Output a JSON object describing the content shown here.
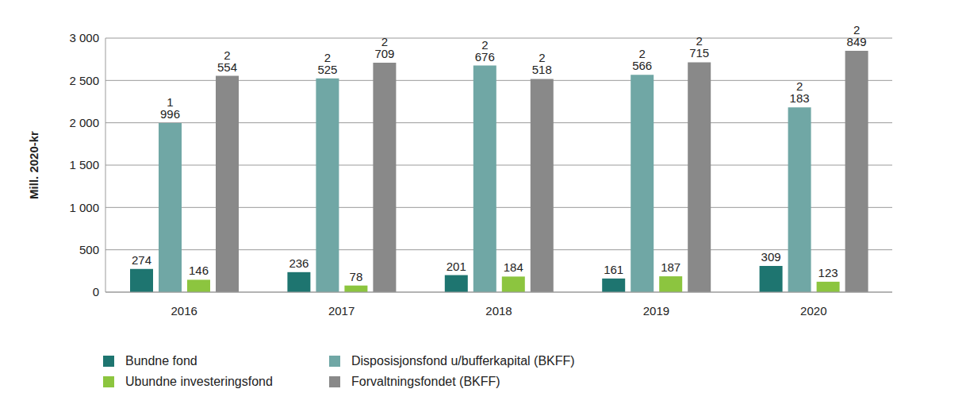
{
  "chart_data": {
    "type": "bar",
    "y_label": "Mill. 2020-kr",
    "categories": [
      "2016",
      "2017",
      "2018",
      "2019",
      "2020"
    ],
    "series": [
      {
        "name": "Bundne fond",
        "color": "#1e7570",
        "values": [
          274,
          236,
          201,
          161,
          309
        ]
      },
      {
        "name": "Disposisjonsfond u/bufferkapital (BKFF)",
        "color": "#70a7a5",
        "values": [
          1996,
          2525,
          2676,
          2566,
          2183
        ],
        "value_labels": [
          "1 996",
          "2 525",
          "2 676",
          "2 566",
          "2 183"
        ]
      },
      {
        "name": "Ubundne investeringsfond",
        "color": "#8cc53f",
        "values": [
          146,
          78,
          184,
          187,
          123
        ]
      },
      {
        "name": "Forvaltningsfondet (BKFF)",
        "color": "#898989",
        "values": [
          2554,
          2709,
          2518,
          2715,
          2849
        ],
        "value_labels": [
          "2 554",
          "2 709",
          "2 518",
          "2 715",
          "2 849"
        ]
      }
    ],
    "ylim": [
      0,
      3000
    ],
    "yticks": [
      0,
      500,
      {
        "value": 1000,
        "label": "1 000"
      },
      {
        "value": 1500,
        "label": "1 500"
      },
      {
        "value": 2000,
        "label": "2 000"
      },
      {
        "value": 2500,
        "label": "2 500"
      },
      {
        "value": 3000,
        "label": "3 000"
      }
    ],
    "grid": true,
    "data_labels": true,
    "legend": "bottom"
  }
}
